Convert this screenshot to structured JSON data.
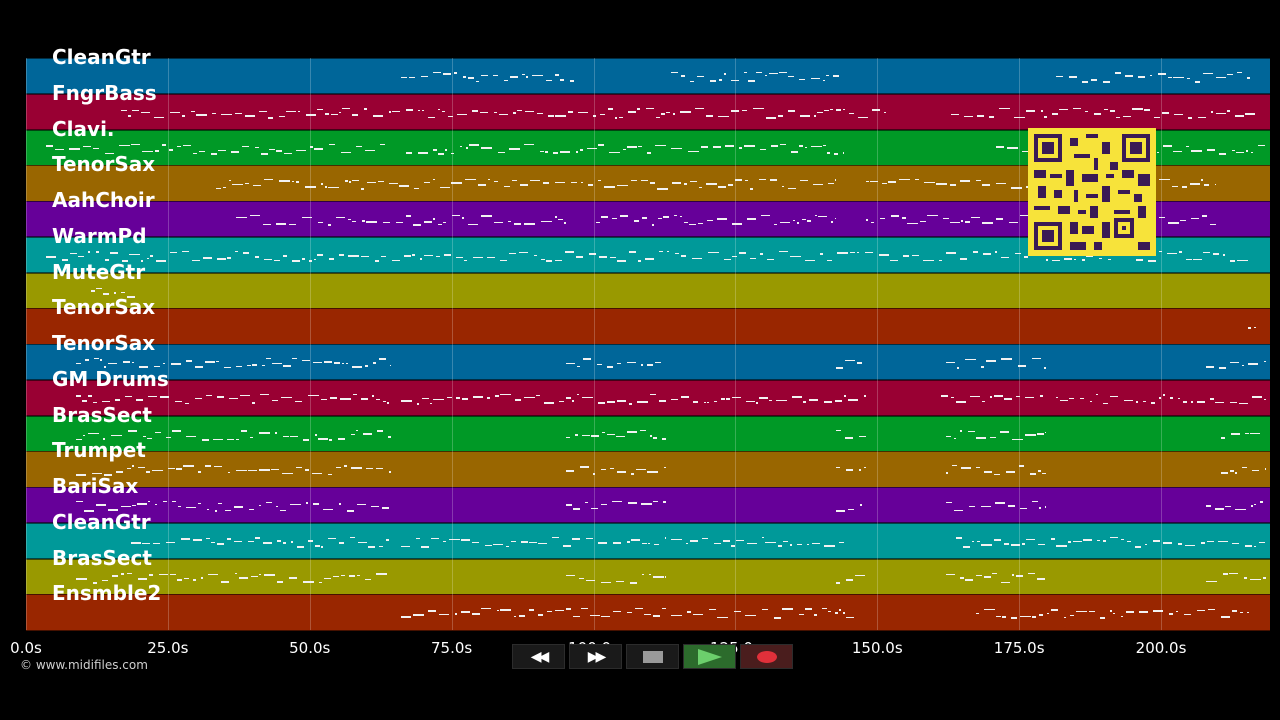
{
  "tracks": [
    {
      "name": "CleanGtr",
      "color": "#006699"
    },
    {
      "name": "FngrBass",
      "color": "#990033"
    },
    {
      "name": "Clavi.",
      "color": "#009926"
    },
    {
      "name": "TenorSax",
      "color": "#996600"
    },
    {
      "name": "AahChoir",
      "color": "#660099"
    },
    {
      "name": "WarmPd",
      "color": "#009999"
    },
    {
      "name": "MuteGtr",
      "color": "#999900"
    },
    {
      "name": "TenorSax",
      "color": "#992600"
    },
    {
      "name": "TenorSax",
      "color": "#006699"
    },
    {
      "name": "GM Drums",
      "color": "#990033"
    },
    {
      "name": "BrasSect",
      "color": "#009926"
    },
    {
      "name": "Trumpet",
      "color": "#996600"
    },
    {
      "name": "BariSax",
      "color": "#660099"
    },
    {
      "name": "CleanGtr",
      "color": "#009999"
    },
    {
      "name": "BrasSect",
      "color": "#999900"
    },
    {
      "name": "Ensmble2",
      "color": "#992600"
    }
  ],
  "timeline": {
    "max_seconds": 219.2,
    "ticks": [
      {
        "value": 0,
        "label": "0.0s"
      },
      {
        "value": 25,
        "label": "25.0s"
      },
      {
        "value": 50,
        "label": "50.0s"
      },
      {
        "value": 75,
        "label": "75.0s"
      },
      {
        "value": 100,
        "label": "100.0s"
      },
      {
        "value": 125,
        "label": "125.0s"
      },
      {
        "value": 150,
        "label": "150.0s"
      },
      {
        "value": 175,
        "label": "175.0s"
      },
      {
        "value": 200,
        "label": "200.0s"
      }
    ]
  },
  "copyright": "© www.midifiles.com",
  "transport": {
    "rewind_icon": "rewind-icon",
    "forward_icon": "fast-forward-icon",
    "stop_icon": "stop-icon",
    "play_icon": "play-icon",
    "record_icon": "record-icon"
  },
  "qr_icon": "qr-code-icon"
}
